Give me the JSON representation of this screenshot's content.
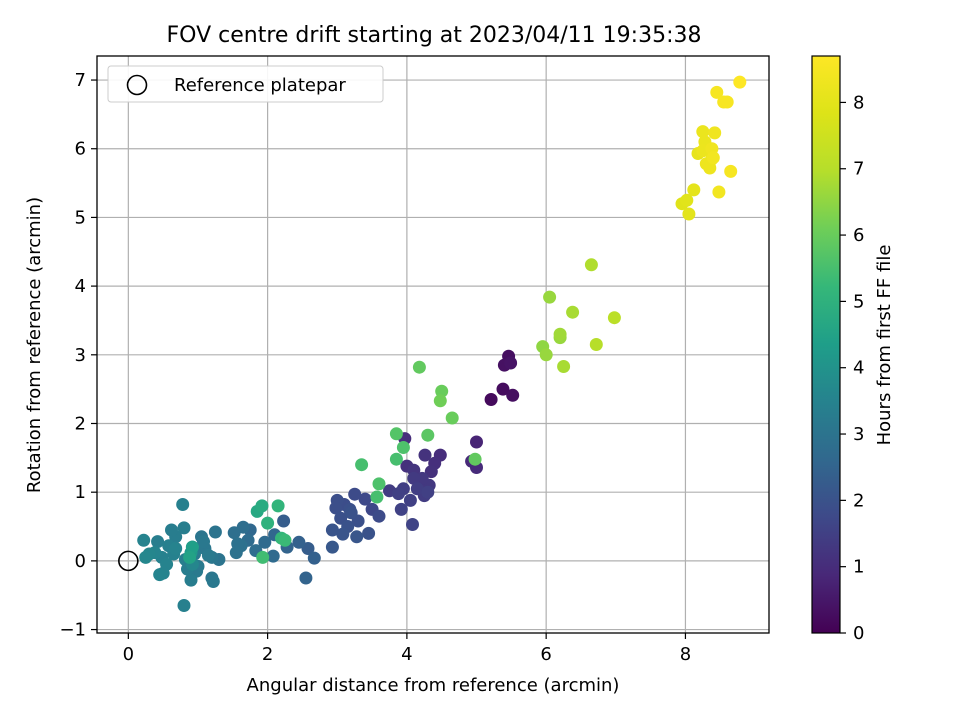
{
  "chart_data": {
    "type": "scatter",
    "title": "FOV centre drift starting at 2023/04/11 19:35:38",
    "xlabel": "Angular distance from reference (arcmin)",
    "ylabel": "Rotation from reference (arcmin)",
    "colorbar_label": "Hours from first FF file",
    "colormap": "viridis",
    "xlim": [
      -0.45,
      9.2
    ],
    "ylim": [
      -1.05,
      7.35
    ],
    "xticks": [
      0,
      2,
      4,
      6,
      8
    ],
    "yticks": [
      -1,
      0,
      1,
      2,
      3,
      4,
      5,
      6,
      7
    ],
    "colorbar_range": [
      0,
      8.7
    ],
    "colorbar_ticks": [
      0,
      1,
      2,
      3,
      4,
      5,
      6,
      7,
      8
    ],
    "grid": true,
    "legend": {
      "placement": "top-left",
      "entries": [
        {
          "label": "Reference platepar",
          "marker": "hollow-circle"
        }
      ]
    },
    "reference_point": {
      "x": 0,
      "y": 0
    },
    "points": [
      {
        "x": 5.21,
        "y": 2.35,
        "h": 0.2
      },
      {
        "x": 5.38,
        "y": 2.5,
        "h": 0.25
      },
      {
        "x": 5.52,
        "y": 2.41,
        "h": 0.3
      },
      {
        "x": 5.4,
        "y": 2.85,
        "h": 0.35
      },
      {
        "x": 5.46,
        "y": 2.98,
        "h": 0.3
      },
      {
        "x": 5.49,
        "y": 2.88,
        "h": 0.4
      },
      {
        "x": 5.0,
        "y": 1.73,
        "h": 0.8
      },
      {
        "x": 4.93,
        "y": 1.45,
        "h": 0.9
      },
      {
        "x": 5.0,
        "y": 1.36,
        "h": 0.95
      },
      {
        "x": 4.48,
        "y": 1.54,
        "h": 1.0
      },
      {
        "x": 4.4,
        "y": 1.42,
        "h": 1.05
      },
      {
        "x": 4.35,
        "y": 1.3,
        "h": 1.1
      },
      {
        "x": 4.26,
        "y": 1.54,
        "h": 1.15
      },
      {
        "x": 4.1,
        "y": 1.32,
        "h": 1.2
      },
      {
        "x": 4.0,
        "y": 1.38,
        "h": 1.1
      },
      {
        "x": 3.97,
        "y": 1.78,
        "h": 1.0
      },
      {
        "x": 4.32,
        "y": 1.1,
        "h": 1.3
      },
      {
        "x": 4.2,
        "y": 1.05,
        "h": 1.25
      },
      {
        "x": 4.1,
        "y": 1.2,
        "h": 1.35
      },
      {
        "x": 4.25,
        "y": 0.95,
        "h": 1.4
      },
      {
        "x": 3.95,
        "y": 1.05,
        "h": 1.45
      },
      {
        "x": 3.88,
        "y": 0.98,
        "h": 1.5
      },
      {
        "x": 3.75,
        "y": 1.02,
        "h": 1.4
      },
      {
        "x": 4.05,
        "y": 0.88,
        "h": 1.5
      },
      {
        "x": 3.92,
        "y": 0.75,
        "h": 1.55
      },
      {
        "x": 4.08,
        "y": 0.53,
        "h": 1.6
      },
      {
        "x": 4.3,
        "y": 1.0,
        "h": 1.5
      },
      {
        "x": 4.22,
        "y": 1.2,
        "h": 1.3
      },
      {
        "x": 4.15,
        "y": 1.05,
        "h": 1.45
      },
      {
        "x": 3.5,
        "y": 0.75,
        "h": 1.7
      },
      {
        "x": 3.6,
        "y": 0.65,
        "h": 1.8
      },
      {
        "x": 3.4,
        "y": 0.9,
        "h": 1.75
      },
      {
        "x": 3.25,
        "y": 0.97,
        "h": 1.8
      },
      {
        "x": 3.1,
        "y": 0.82,
        "h": 1.85
      },
      {
        "x": 3.0,
        "y": 0.88,
        "h": 1.9
      },
      {
        "x": 2.98,
        "y": 0.77,
        "h": 1.9
      },
      {
        "x": 3.05,
        "y": 0.62,
        "h": 1.95
      },
      {
        "x": 3.2,
        "y": 0.7,
        "h": 2.0
      },
      {
        "x": 3.3,
        "y": 0.58,
        "h": 1.95
      },
      {
        "x": 3.15,
        "y": 0.5,
        "h": 2.0
      },
      {
        "x": 2.93,
        "y": 0.45,
        "h": 2.05
      },
      {
        "x": 3.08,
        "y": 0.39,
        "h": 2.05
      },
      {
        "x": 3.28,
        "y": 0.35,
        "h": 2.1
      },
      {
        "x": 3.45,
        "y": 0.4,
        "h": 2.0
      },
      {
        "x": 2.93,
        "y": 0.2,
        "h": 2.15
      },
      {
        "x": 3.18,
        "y": 0.75,
        "h": 1.95
      },
      {
        "x": 2.58,
        "y": 0.18,
        "h": 2.3
      },
      {
        "x": 2.67,
        "y": 0.04,
        "h": 2.4
      },
      {
        "x": 2.45,
        "y": 0.27,
        "h": 2.4
      },
      {
        "x": 2.55,
        "y": -0.25,
        "h": 2.5
      },
      {
        "x": 2.23,
        "y": 0.58,
        "h": 2.3
      },
      {
        "x": 2.28,
        "y": 0.2,
        "h": 2.5
      },
      {
        "x": 2.1,
        "y": 0.38,
        "h": 2.6
      },
      {
        "x": 2.08,
        "y": 0.07,
        "h": 2.7
      },
      {
        "x": 1.96,
        "y": 0.27,
        "h": 2.7
      },
      {
        "x": 1.83,
        "y": 0.15,
        "h": 2.8
      },
      {
        "x": 1.72,
        "y": 0.3,
        "h": 2.75
      },
      {
        "x": 1.75,
        "y": 0.45,
        "h": 2.6
      },
      {
        "x": 1.62,
        "y": 0.22,
        "h": 2.9
      },
      {
        "x": 1.65,
        "y": 0.49,
        "h": 2.8
      },
      {
        "x": 1.55,
        "y": 0.12,
        "h": 2.95
      },
      {
        "x": 1.57,
        "y": 0.25,
        "h": 2.9
      },
      {
        "x": 1.52,
        "y": 0.41,
        "h": 2.85
      },
      {
        "x": 1.3,
        "y": 0.02,
        "h": 3.0
      },
      {
        "x": 1.25,
        "y": 0.42,
        "h": 3.0
      },
      {
        "x": 1.2,
        "y": 0.05,
        "h": 3.1
      },
      {
        "x": 1.2,
        "y": -0.25,
        "h": 3.1
      },
      {
        "x": 1.22,
        "y": -0.3,
        "h": 3.15
      },
      {
        "x": 1.1,
        "y": 0.18,
        "h": 3.1
      },
      {
        "x": 1.05,
        "y": 0.35,
        "h": 3.05
      },
      {
        "x": 1.0,
        "y": -0.08,
        "h": 3.2
      },
      {
        "x": 0.98,
        "y": -0.15,
        "h": 3.2
      },
      {
        "x": 0.95,
        "y": 0.1,
        "h": 3.25
      },
      {
        "x": 0.92,
        "y": 0.2,
        "h": 3.2
      },
      {
        "x": 0.9,
        "y": -0.28,
        "h": 3.3
      },
      {
        "x": 0.85,
        "y": -0.12,
        "h": 3.3
      },
      {
        "x": 0.82,
        "y": 0.02,
        "h": 3.35
      },
      {
        "x": 0.8,
        "y": 0.48,
        "h": 3.35
      },
      {
        "x": 0.78,
        "y": 0.82,
        "h": 3.4
      },
      {
        "x": 0.8,
        "y": -0.65,
        "h": 3.4
      },
      {
        "x": 0.68,
        "y": 0.35,
        "h": 3.3
      },
      {
        "x": 0.65,
        "y": 0.1,
        "h": 3.45
      },
      {
        "x": 0.62,
        "y": 0.45,
        "h": 3.3
      },
      {
        "x": 0.58,
        "y": 0.22,
        "h": 3.4
      },
      {
        "x": 0.55,
        "y": -0.05,
        "h": 3.5
      },
      {
        "x": 0.5,
        "y": -0.18,
        "h": 3.5
      },
      {
        "x": 0.45,
        "y": -0.2,
        "h": 3.55
      },
      {
        "x": 0.48,
        "y": 0.05,
        "h": 3.45
      },
      {
        "x": 0.42,
        "y": 0.28,
        "h": 3.35
      },
      {
        "x": 0.38,
        "y": 0.12,
        "h": 3.55
      },
      {
        "x": 0.3,
        "y": 0.1,
        "h": 3.6
      },
      {
        "x": 0.22,
        "y": 0.3,
        "h": 3.5
      },
      {
        "x": 0.25,
        "y": 0.05,
        "h": 3.65
      },
      {
        "x": 0.68,
        "y": 0.18,
        "h": 3.5
      },
      {
        "x": 1.08,
        "y": 0.28,
        "h": 3.15
      },
      {
        "x": 1.15,
        "y": 0.08,
        "h": 3.2
      },
      {
        "x": 0.92,
        "y": -0.05,
        "h": 3.6
      },
      {
        "x": 0.9,
        "y": 0.12,
        "h": 4.2
      },
      {
        "x": 0.92,
        "y": 0.2,
        "h": 4.4
      },
      {
        "x": 0.88,
        "y": 0.05,
        "h": 4.5
      },
      {
        "x": 1.92,
        "y": 0.8,
        "h": 4.8
      },
      {
        "x": 1.85,
        "y": 0.72,
        "h": 4.7
      },
      {
        "x": 2.0,
        "y": 0.55,
        "h": 5.0
      },
      {
        "x": 2.15,
        "y": 0.8,
        "h": 5.1
      },
      {
        "x": 2.2,
        "y": 0.33,
        "h": 5.2
      },
      {
        "x": 2.25,
        "y": 0.3,
        "h": 5.3
      },
      {
        "x": 1.93,
        "y": 0.05,
        "h": 5.4
      },
      {
        "x": 3.57,
        "y": 0.93,
        "h": 5.5
      },
      {
        "x": 3.6,
        "y": 1.12,
        "h": 5.6
      },
      {
        "x": 3.35,
        "y": 1.4,
        "h": 5.5
      },
      {
        "x": 3.85,
        "y": 1.48,
        "h": 5.5
      },
      {
        "x": 3.85,
        "y": 1.85,
        "h": 5.7
      },
      {
        "x": 3.95,
        "y": 1.65,
        "h": 5.6
      },
      {
        "x": 4.3,
        "y": 1.83,
        "h": 5.8
      },
      {
        "x": 4.18,
        "y": 2.82,
        "h": 5.9
      },
      {
        "x": 4.5,
        "y": 2.47,
        "h": 6.0
      },
      {
        "x": 4.48,
        "y": 2.33,
        "h": 6.1
      },
      {
        "x": 4.65,
        "y": 2.08,
        "h": 6.0
      },
      {
        "x": 4.98,
        "y": 1.48,
        "h": 5.9
      },
      {
        "x": 6.0,
        "y": 3.0,
        "h": 6.6
      },
      {
        "x": 5.95,
        "y": 3.12,
        "h": 6.5
      },
      {
        "x": 6.05,
        "y": 3.84,
        "h": 6.6
      },
      {
        "x": 6.2,
        "y": 3.3,
        "h": 6.7
      },
      {
        "x": 6.2,
        "y": 3.25,
        "h": 6.6
      },
      {
        "x": 6.25,
        "y": 2.83,
        "h": 6.8
      },
      {
        "x": 6.38,
        "y": 3.62,
        "h": 6.8
      },
      {
        "x": 6.65,
        "y": 4.31,
        "h": 6.9
      },
      {
        "x": 6.72,
        "y": 3.15,
        "h": 7.0
      },
      {
        "x": 6.98,
        "y": 3.54,
        "h": 7.1
      },
      {
        "x": 7.95,
        "y": 5.2,
        "h": 7.9
      },
      {
        "x": 8.02,
        "y": 5.25,
        "h": 7.95
      },
      {
        "x": 8.05,
        "y": 5.05,
        "h": 8.0
      },
      {
        "x": 8.12,
        "y": 5.4,
        "h": 8.05
      },
      {
        "x": 8.18,
        "y": 5.93,
        "h": 8.1
      },
      {
        "x": 8.25,
        "y": 6.25,
        "h": 8.2
      },
      {
        "x": 8.28,
        "y": 6.1,
        "h": 8.2
      },
      {
        "x": 8.25,
        "y": 5.97,
        "h": 8.25
      },
      {
        "x": 8.3,
        "y": 5.78,
        "h": 8.3
      },
      {
        "x": 8.35,
        "y": 5.72,
        "h": 8.3
      },
      {
        "x": 8.38,
        "y": 6.0,
        "h": 8.35
      },
      {
        "x": 8.4,
        "y": 5.87,
        "h": 8.4
      },
      {
        "x": 8.42,
        "y": 6.23,
        "h": 8.35
      },
      {
        "x": 8.38,
        "y": 5.85,
        "h": 8.3
      },
      {
        "x": 8.45,
        "y": 6.82,
        "h": 8.5
      },
      {
        "x": 8.48,
        "y": 5.37,
        "h": 8.4
      },
      {
        "x": 8.55,
        "y": 6.68,
        "h": 8.55
      },
      {
        "x": 8.6,
        "y": 6.68,
        "h": 8.55
      },
      {
        "x": 8.65,
        "y": 5.67,
        "h": 8.5
      },
      {
        "x": 8.78,
        "y": 6.97,
        "h": 8.7
      }
    ]
  }
}
